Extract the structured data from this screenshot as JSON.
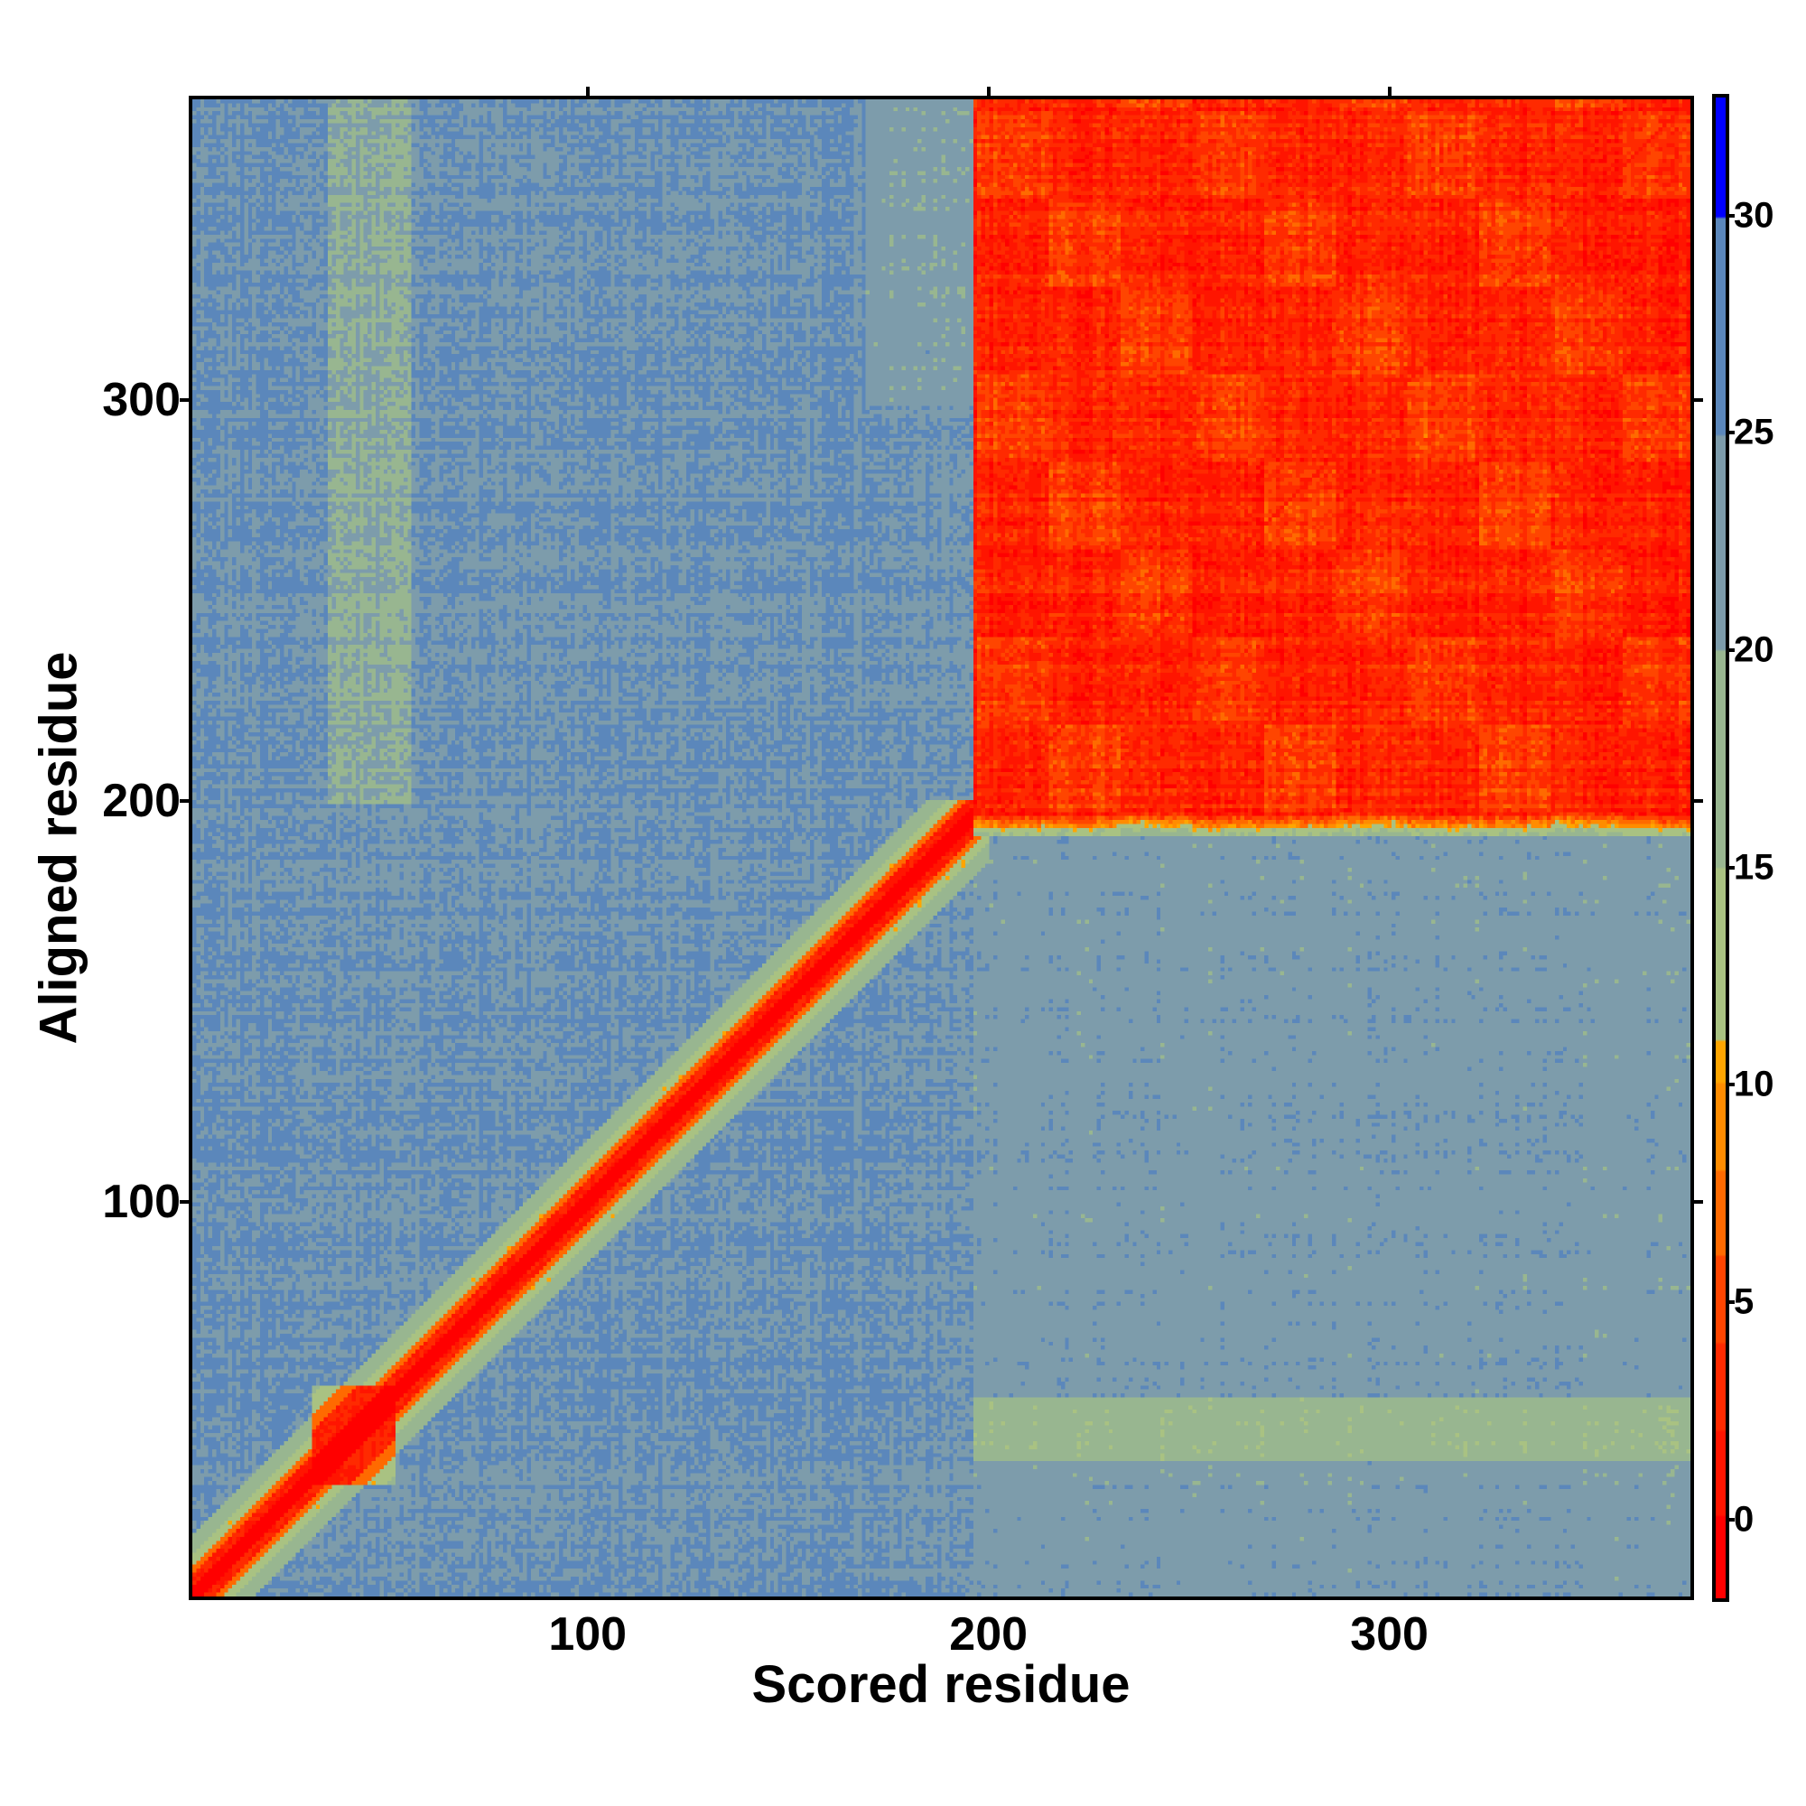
{
  "chart_data": {
    "type": "heatmap",
    "title": "",
    "xlabel": "Scored residue",
    "ylabel": "Aligned residue",
    "xlim": [
      0.5,
      376
    ],
    "ylim": [
      0.5,
      376
    ],
    "xticks": [
      100,
      200,
      300
    ],
    "yticks": [
      100,
      200,
      300
    ],
    "colorbar": {
      "range": [
        -1.9,
        32.8
      ],
      "ticks": [
        0,
        5,
        10,
        15,
        20,
        25,
        30
      ],
      "bands": [
        {
          "from": -1.9,
          "to": 0,
          "color": "#ff0000"
        },
        {
          "from": 0,
          "to": 2,
          "color": "#ff1500"
        },
        {
          "from": 2,
          "to": 4,
          "color": "#ff2a00"
        },
        {
          "from": 4,
          "to": 6,
          "color": "#ff4500"
        },
        {
          "from": 6,
          "to": 8,
          "color": "#ff6a00"
        },
        {
          "from": 8,
          "to": 10,
          "color": "#ff8c00"
        },
        {
          "from": 10,
          "to": 11,
          "color": "#ffa500"
        },
        {
          "from": 11,
          "to": 15,
          "color": "#a9c282"
        },
        {
          "from": 15,
          "to": 20,
          "color": "#98b690"
        },
        {
          "from": 20,
          "to": 25,
          "color": "#7d9cab"
        },
        {
          "from": 25,
          "to": 30,
          "color": "#5b87bb"
        },
        {
          "from": 30,
          "to": 32.8,
          "color": "#0000ff"
        }
      ]
    },
    "regions": [
      {
        "name": "domain-2 block",
        "x": [
          197,
          376
        ],
        "y": [
          197,
          376
        ],
        "value": 2
      },
      {
        "name": "diagonal",
        "x": [
          1,
          197
        ],
        "y": [
          1,
          197
        ],
        "value": 0,
        "halfwidth": 8
      },
      {
        "name": "n-term blob",
        "x": [
          32,
          52
        ],
        "y": [
          30,
          52
        ],
        "value": 3
      },
      {
        "name": "domain-2 vs low-y band",
        "x": [
          197,
          376
        ],
        "y": [
          35,
          50
        ],
        "value": 18
      },
      {
        "name": "column near x=45",
        "x": [
          35,
          52
        ],
        "y": [
          200,
          376
        ],
        "value": 20
      },
      {
        "name": "background",
        "value": 25
      }
    ]
  }
}
